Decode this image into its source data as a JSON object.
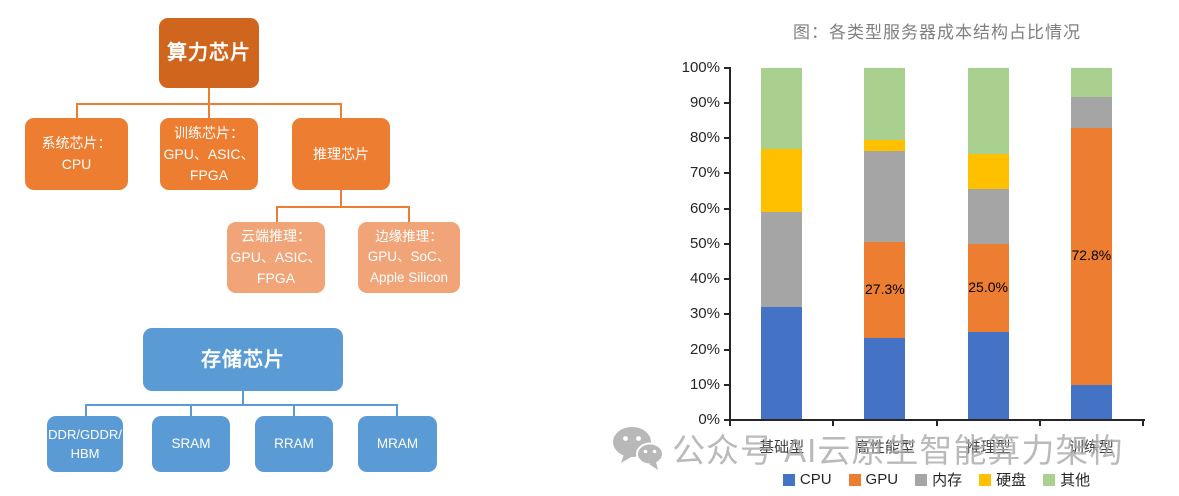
{
  "diagram": {
    "compute_tree": {
      "root": "算力芯片",
      "root_color": "#D0661E",
      "child_color": "#ED7D31",
      "leaf_color": "#F1A478",
      "children": [
        "系统芯片：\nCPU",
        "训练芯片：\nGPU、ASIC、\nFPGA",
        "推理芯片"
      ],
      "leaves": [
        "云端推理：\nGPU、ASIC、\nFPGA",
        "边缘推理：\nGPU、SoC、\nApple Silicon"
      ]
    },
    "storage_tree": {
      "root": "存储芯片",
      "color": "#5B9BD5",
      "children": [
        "DDR/GDDR/\nHBM",
        "SRAM",
        "RRAM",
        "MRAM"
      ]
    }
  },
  "chart_data": {
    "type": "bar",
    "stacked": true,
    "title": "图：各类型服务器成本结构占比情况",
    "categories": [
      "基础型",
      "高性能型",
      "推理型",
      "训练型"
    ],
    "series": [
      {
        "name": "CPU",
        "color": "#4472C4",
        "values": [
          32,
          23.3,
          25,
          10
        ]
      },
      {
        "name": "GPU",
        "color": "#ED7D31",
        "values": [
          0,
          27.3,
          25,
          72.8
        ]
      },
      {
        "name": "内存",
        "color": "#A5A5A5",
        "values": [
          27,
          25.8,
          15.5,
          8.7
        ]
      },
      {
        "name": "硬盘",
        "color": "#FFC000",
        "values": [
          18,
          3,
          10,
          0
        ]
      },
      {
        "name": "其他",
        "color": "#A9D08E",
        "values": [
          23,
          20.6,
          24.5,
          8.5
        ]
      }
    ],
    "data_labels": [
      {
        "category_index": 1,
        "series": "GPU",
        "text": "27.3%"
      },
      {
        "category_index": 2,
        "series": "GPU",
        "text": "25.0%"
      },
      {
        "category_index": 3,
        "series": "GPU",
        "text": "72.8%"
      }
    ],
    "y_axis": {
      "min": 0,
      "max": 100,
      "tick_step": 10,
      "tick_labels": [
        "0%",
        "10%",
        "20%",
        "30%",
        "40%",
        "50%",
        "60%",
        "70%",
        "80%",
        "90%",
        "100%"
      ]
    },
    "grid": false,
    "legend_position": "bottom"
  },
  "watermark": {
    "icon": "wechat-icon",
    "text": "公众号 AI云原生智能算力架构"
  }
}
